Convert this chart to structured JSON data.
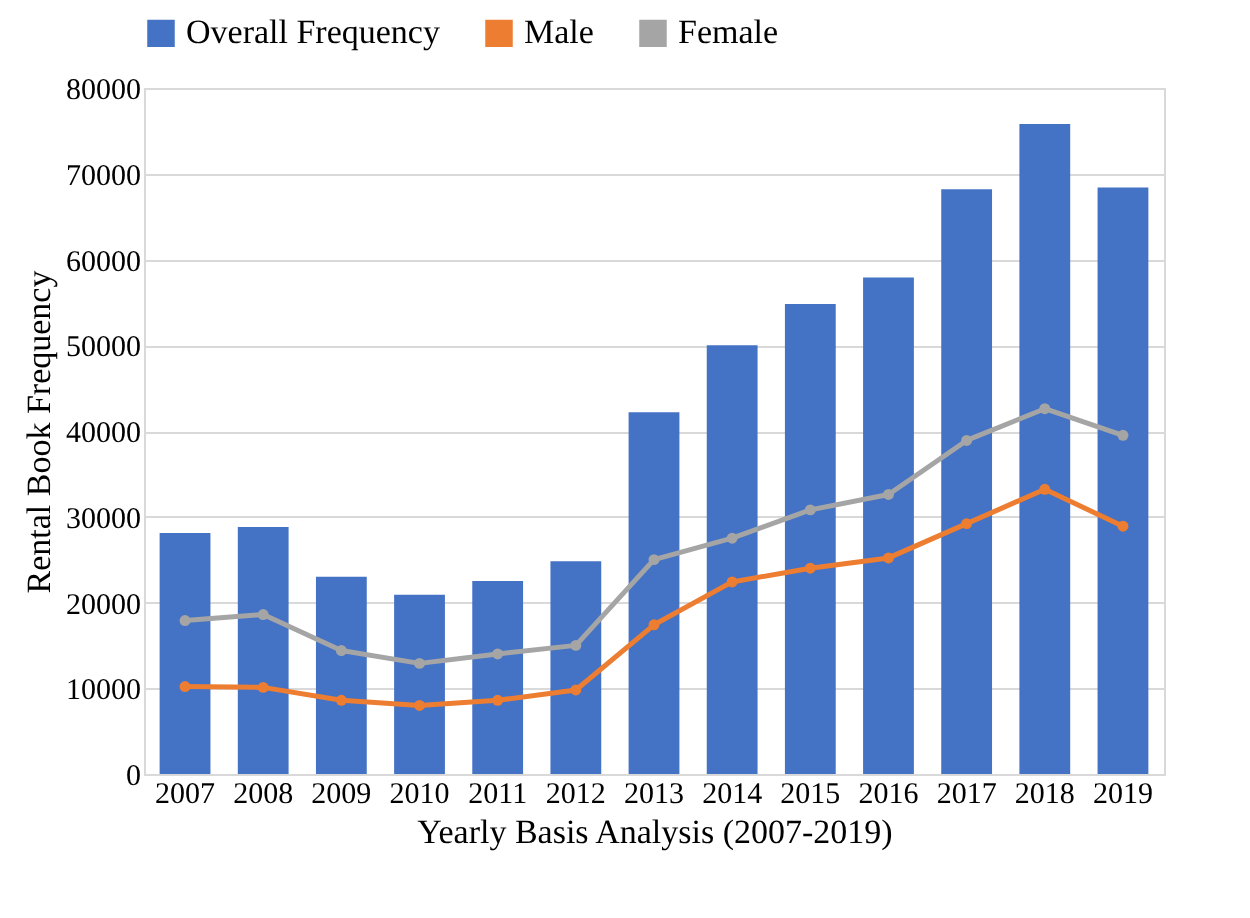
{
  "chart_data": {
    "type": "bar",
    "xlabel": "Yearly Basis Analysis (2007-2019)",
    "ylabel": "Rental Book Frequency",
    "categories": [
      "2007",
      "2008",
      "2009",
      "2010",
      "2011",
      "2012",
      "2013",
      "2014",
      "2015",
      "2016",
      "2017",
      "2018",
      "2019"
    ],
    "series": [
      {
        "name": "Overall Frequency",
        "color": "#4472c4",
        "values": [
          28100,
          28800,
          23000,
          20900,
          22500,
          24800,
          42200,
          50000,
          54800,
          57900,
          68200,
          75800,
          68400
        ]
      },
      {
        "name": "Male",
        "type": "line",
        "color": "#ed7d31",
        "values": [
          10200,
          10100,
          8600,
          8000,
          8600,
          9800,
          17400,
          22400,
          24000,
          25200,
          29200,
          33200,
          28900
        ]
      },
      {
        "name": "Female",
        "type": "line",
        "color": "#a5a5a5",
        "values": [
          17900,
          18600,
          14400,
          12900,
          14000,
          15000,
          25000,
          27500,
          30800,
          32600,
          38900,
          42600,
          39500
        ]
      }
    ],
    "ylim": [
      0,
      80000
    ],
    "yticks": [
      0,
      10000,
      20000,
      30000,
      40000,
      50000,
      60000,
      70000,
      80000
    ],
    "grid": "y",
    "legend": "top",
    "marker": "circle"
  }
}
